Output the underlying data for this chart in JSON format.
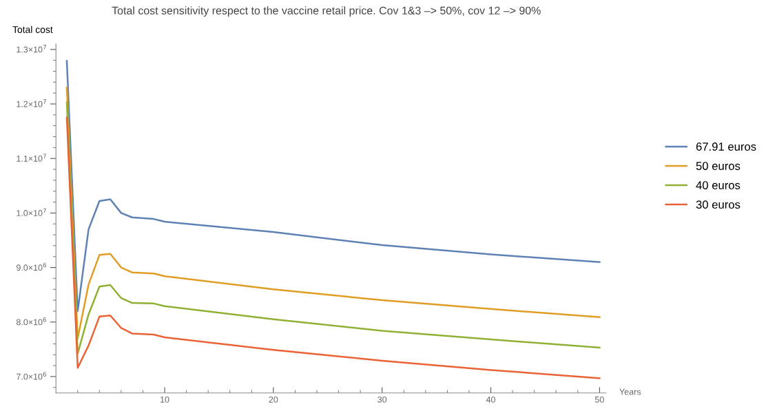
{
  "chart_data": {
    "type": "line",
    "title": "Total cost sensitivity respect to the vaccine retail price. Cov 1&3 –> 50%, cov 12 –> 90%",
    "xlabel": "Years",
    "ylabel": "Total cost",
    "x": [
      1,
      2,
      3,
      4,
      5,
      6,
      7,
      9,
      10,
      20,
      30,
      40,
      50
    ],
    "series": [
      {
        "name": "67.91 euros",
        "color": "#5e81b5",
        "values": [
          12790000,
          8200000,
          9700000,
          10220000,
          10250000,
          10000000,
          9920000,
          9890000,
          9840000,
          9650000,
          9410000,
          9240000,
          9100000
        ]
      },
      {
        "name": "50 euros",
        "color": "#e19c24",
        "values": [
          12300000,
          7700000,
          8690000,
          9230000,
          9250000,
          9000000,
          8910000,
          8890000,
          8840000,
          8600000,
          8400000,
          8240000,
          8090000
        ]
      },
      {
        "name": "40 euros",
        "color": "#8fb032",
        "values": [
          12030000,
          7420000,
          8140000,
          8650000,
          8680000,
          8440000,
          8350000,
          8340000,
          8290000,
          8050000,
          7840000,
          7680000,
          7530000
        ]
      },
      {
        "name": "30 euros",
        "color": "#eb6235",
        "values": [
          11750000,
          7160000,
          7570000,
          8100000,
          8120000,
          7890000,
          7790000,
          7770000,
          7720000,
          7490000,
          7290000,
          7120000,
          6970000
        ]
      }
    ],
    "xlim": [
      0,
      50.6
    ],
    "ylim": [
      6700000,
      13100000
    ],
    "xticks": [
      {
        "value": 2,
        "label": null
      },
      {
        "value": 4,
        "label": null
      },
      {
        "value": 6,
        "label": null
      },
      {
        "value": 8,
        "label": null
      },
      10,
      {
        "value": 12,
        "label": null
      },
      {
        "value": 14,
        "label": null
      },
      {
        "value": 16,
        "label": null
      },
      {
        "value": 18,
        "label": null
      },
      20,
      {
        "value": 22,
        "label": null
      },
      {
        "value": 24,
        "label": null
      },
      {
        "value": 26,
        "label": null
      },
      {
        "value": 28,
        "label": null
      },
      30,
      {
        "value": 32,
        "label": null
      },
      {
        "value": 34,
        "label": null
      },
      {
        "value": 36,
        "label": null
      },
      {
        "value": 38,
        "label": null
      },
      40,
      {
        "value": 42,
        "label": null
      },
      {
        "value": 44,
        "label": null
      },
      {
        "value": 46,
        "label": null
      },
      {
        "value": 48,
        "label": null
      },
      50
    ],
    "yticks": [
      {
        "value": 6800000,
        "label": null
      },
      {
        "value": 7000000,
        "label": "7.0×10$^{6}$"
      },
      {
        "value": 7200000,
        "label": null
      },
      {
        "value": 7400000,
        "label": null
      },
      {
        "value": 7600000,
        "label": null
      },
      {
        "value": 7800000,
        "label": null
      },
      {
        "value": 8000000,
        "label": "8.0×10$^{6}$"
      },
      {
        "value": 8200000,
        "label": null
      },
      {
        "value": 8400000,
        "label": null
      },
      {
        "value": 8600000,
        "label": null
      },
      {
        "value": 8800000,
        "label": null
      },
      {
        "value": 9000000,
        "label": "9.0×10$^{6}$"
      },
      {
        "value": 9200000,
        "label": null
      },
      {
        "value": 9400000,
        "label": null
      },
      {
        "value": 9600000,
        "label": null
      },
      {
        "value": 9800000,
        "label": null
      },
      {
        "value": 10000000,
        "label": "1.0×10$^{7}$"
      },
      {
        "value": 10200000,
        "label": null
      },
      {
        "value": 10400000,
        "label": null
      },
      {
        "value": 10600000,
        "label": null
      },
      {
        "value": 10800000,
        "label": null
      },
      {
        "value": 11000000,
        "label": "1.1×10$^{7}$"
      },
      {
        "value": 11200000,
        "label": null
      },
      {
        "value": 11400000,
        "label": null
      },
      {
        "value": 11600000,
        "label": null
      },
      {
        "value": 11800000,
        "label": null
      },
      {
        "value": 12000000,
        "label": "1.2×10$^{7}$"
      },
      {
        "value": 12200000,
        "label": null
      },
      {
        "value": 12400000,
        "label": null
      },
      {
        "value": 12600000,
        "label": null
      },
      {
        "value": 12800000,
        "label": null
      },
      {
        "value": 13000000,
        "label": "1.3×10$^{7}$"
      }
    ],
    "grid": false,
    "legend": "right",
    "marker": "none",
    "line_style": "solid"
  }
}
